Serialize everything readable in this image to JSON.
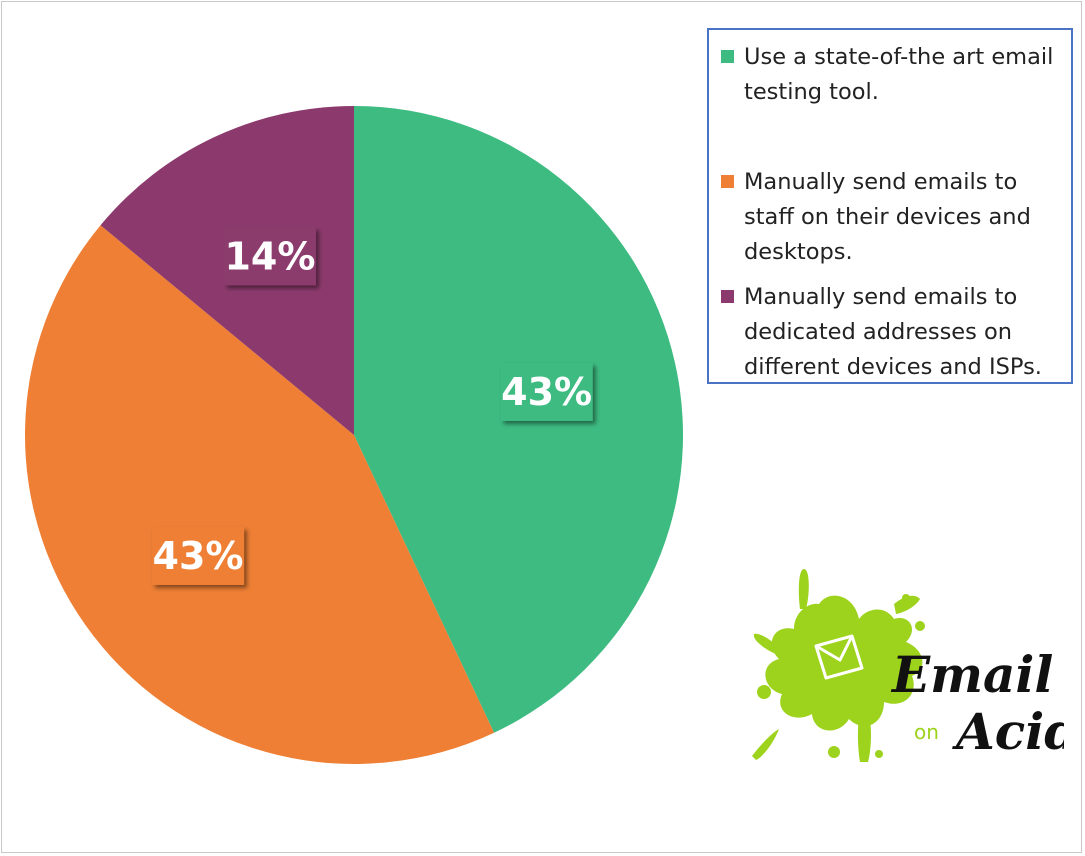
{
  "chart_data": {
    "type": "pie",
    "title": "",
    "slices": [
      {
        "label": "Use a state-of-the art email testing tool.",
        "value": 43,
        "display": "43%",
        "color": "#3dbb81"
      },
      {
        "label": "Manually send emails to staff on their devices and desktops.",
        "value": 43,
        "display": "43%",
        "color": "#ee7f35"
      },
      {
        "label": "Manually send emails to dedicated addresses on different devices and ISPs.",
        "value": 14,
        "display": "14%",
        "color": "#8c3a6d"
      }
    ],
    "legend_position": "top-right"
  },
  "legend": {
    "items": [
      {
        "label": "Use a state-of-the art email testing tool.",
        "color": "#3dbb81"
      },
      {
        "label": "Manually send emails to staff on their devices and desktops.",
        "color": "#ee7f35"
      },
      {
        "label": "Manually send emails to dedicated addresses on different devices and ISPs.",
        "color": "#8c3a6d"
      }
    ],
    "border_color": "#4a73c4"
  },
  "logo": {
    "line1": "Email",
    "small": "on",
    "line2": "Acid",
    "splash_color": "#9dd31c"
  }
}
